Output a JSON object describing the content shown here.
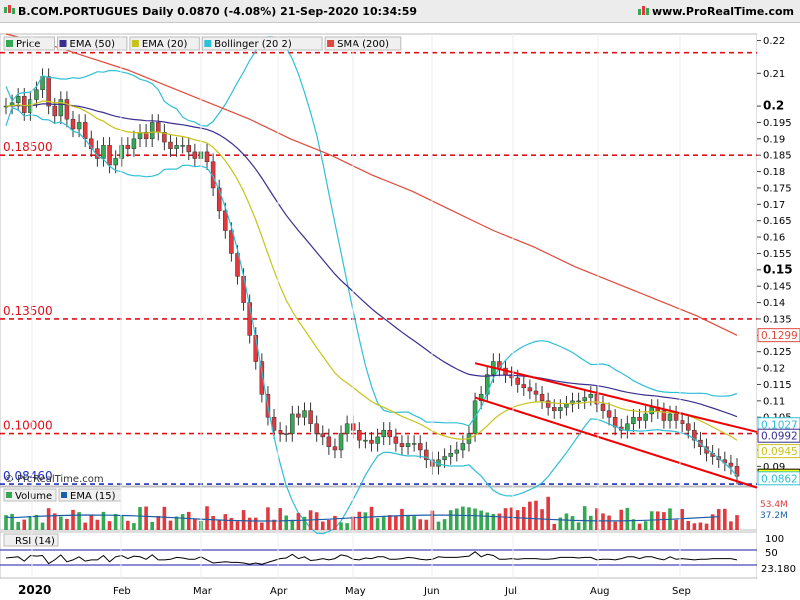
{
  "header": {
    "symbol_line": "B.COM.PORTUGUES Daily 0.0870 (-4.08%) 21-Sep-2020 10:34:59",
    "site": "www.ProRealTime.com"
  },
  "colors": {
    "up": "#34a853",
    "down": "#e0393e",
    "ema50": "#3a2f8f",
    "ema20": "#c8c318",
    "bollinger": "#2fbfd6",
    "sma200": "#e04a3c",
    "hline_red": "#e0101a",
    "hline_blue": "#2030c0",
    "channel": "#f00000",
    "volume_ema": "#1d5ea8",
    "rsi": "#000000",
    "rsi_band": "#1a1aa8"
  },
  "watermark": "© ProRealTime.com",
  "months": [
    "2020",
    "Feb",
    "Mar",
    "Apr",
    "May",
    "Jun",
    "Jul",
    "Aug",
    "Sep"
  ],
  "chart_data": [
    {
      "type": "candlestick",
      "title": "B.COM.PORTUGUES Daily",
      "legend": [
        {
          "label": "Price",
          "icon": "candle-icon"
        },
        {
          "label": "EMA (50)",
          "color": "#3a2f8f"
        },
        {
          "label": "EMA (20)",
          "color": "#c8c318"
        },
        {
          "label": "Bollinger (20 2)",
          "color": "#2fbfd6"
        },
        {
          "label": "SMA (200)",
          "color": "#e04a3c"
        }
      ],
      "y_ticks": [
        "0.22",
        "0.21",
        "0.2",
        "0.195",
        "0.19",
        "0.185",
        "0.18",
        "0.175",
        "0.17",
        "0.165",
        "0.16",
        "0.155",
        "0.15",
        "0.145",
        "0.14",
        "0.135",
        "0.13",
        "0.125",
        "0.12",
        "0.115",
        "0.11",
        "0.105",
        "0.1",
        "0.095",
        "0.09"
      ],
      "y_tick_bold": [
        "0.2",
        "0.15"
      ],
      "ylim": [
        0.084,
        0.222
      ],
      "horizontal_levels": [
        {
          "value": 0.2163,
          "label": "0.21630",
          "color": "#e0101a"
        },
        {
          "value": 0.185,
          "label": "0.18500",
          "color": "#e0101a"
        },
        {
          "value": 0.135,
          "label": "0.13500",
          "color": "#e0101a"
        },
        {
          "value": 0.1,
          "label": "0.10000",
          "color": "#e0101a"
        },
        {
          "value": 0.0846,
          "label": "0.08460",
          "color": "#2030c0"
        }
      ],
      "last_values": [
        {
          "label": "0.1299",
          "color": "#e04a3c",
          "value": 0.1299
        },
        {
          "label": "0.1027",
          "color": "#2fbfd6",
          "value": 0.1027
        },
        {
          "label": "0.0992",
          "color": "#3a2f8f",
          "value": 0.0992
        },
        {
          "label": "0.0945",
          "color": "#c8c318",
          "value": 0.0945
        },
        {
          "label": "0.0870",
          "color": "#000000",
          "value": 0.087,
          "highlight": true
        },
        {
          "label": "0.0862",
          "color": "#2fbfd6",
          "value": 0.0862
        }
      ],
      "closes": [
        0.2,
        0.201,
        0.203,
        0.198,
        0.202,
        0.205,
        0.209,
        0.2,
        0.197,
        0.202,
        0.196,
        0.193,
        0.195,
        0.19,
        0.187,
        0.184,
        0.188,
        0.182,
        0.184,
        0.188,
        0.187,
        0.19,
        0.192,
        0.19,
        0.195,
        0.192,
        0.189,
        0.187,
        0.188,
        0.188,
        0.186,
        0.184,
        0.186,
        0.183,
        0.175,
        0.168,
        0.162,
        0.155,
        0.148,
        0.14,
        0.13,
        0.122,
        0.112,
        0.105,
        0.101,
        0.1,
        0.1,
        0.106,
        0.105,
        0.107,
        0.103,
        0.1,
        0.099,
        0.096,
        0.095,
        0.1,
        0.103,
        0.101,
        0.098,
        0.098,
        0.097,
        0.099,
        0.101,
        0.099,
        0.097,
        0.096,
        0.097,
        0.097,
        0.095,
        0.092,
        0.09,
        0.092,
        0.093,
        0.094,
        0.095,
        0.097,
        0.1,
        0.11,
        0.112,
        0.118,
        0.122,
        0.12,
        0.118,
        0.117,
        0.115,
        0.114,
        0.113,
        0.112,
        0.11,
        0.108,
        0.107,
        0.108,
        0.109,
        0.11,
        0.11,
        0.111,
        0.112,
        0.109,
        0.107,
        0.105,
        0.102,
        0.101,
        0.103,
        0.105,
        0.104,
        0.106,
        0.108,
        0.107,
        0.104,
        0.106,
        0.104,
        0.103,
        0.101,
        0.098,
        0.096,
        0.094,
        0.093,
        0.092,
        0.091,
        0.09,
        0.087
      ],
      "sma200_points": [
        [
          0,
          0.222
        ],
        [
          1,
          0.219
        ],
        [
          2,
          0.215
        ],
        [
          3,
          0.211
        ],
        [
          4,
          0.206
        ],
        [
          5,
          0.201
        ],
        [
          6,
          0.196
        ],
        [
          7,
          0.19
        ],
        [
          8,
          0.185
        ],
        [
          9,
          0.179
        ],
        [
          10,
          0.174
        ],
        [
          11,
          0.168
        ],
        [
          12,
          0.162
        ],
        [
          13,
          0.157
        ],
        [
          14,
          0.151
        ],
        [
          15,
          0.146
        ],
        [
          16,
          0.141
        ],
        [
          17,
          0.136
        ],
        [
          18,
          0.13
        ]
      ]
    },
    {
      "type": "bar",
      "legend": [
        {
          "label": "Volume"
        },
        {
          "label": "EMA (15)",
          "color": "#1d5ea8"
        }
      ],
      "y_ticks": [
        "53.4M",
        "37.2M"
      ],
      "last_values": [
        {
          "label": "53.4M",
          "color": "#e0393e"
        },
        {
          "label": "37.2M",
          "color": "#1d5ea8"
        }
      ]
    },
    {
      "type": "line",
      "legend": [
        {
          "label": "RSI (14)"
        }
      ],
      "y_ticks": [
        "100",
        "50"
      ],
      "last_values": [
        {
          "label": "23.180",
          "color": "#000000"
        }
      ]
    }
  ]
}
